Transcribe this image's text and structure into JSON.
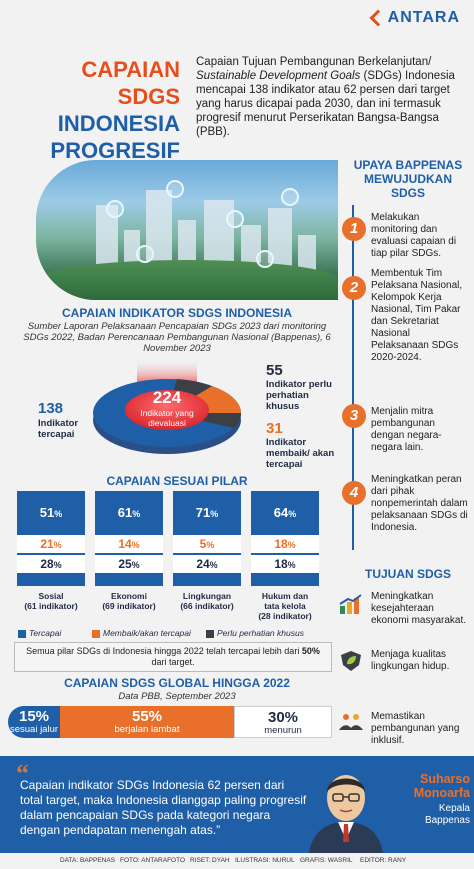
{
  "brand": {
    "logo": "ANTARA"
  },
  "title": {
    "line1": "CAPAIAN SDGS",
    "line2": "INDONESIA",
    "line3": "PROGRESIF"
  },
  "intro": {
    "part1": "Capaian Tujuan Pembangunan Berkelanjutan/ ",
    "part_italic": "Sustainable Development Goals",
    "part2": " (SDGs) Indonesia mencapai 138 indikator atau 62 persen dari target yang harus dicapai pada 2030, dan ini termasuk progresif menurut Perserikatan Bangsa-Bangsa (PBB)."
  },
  "indikator": {
    "heading": "CAPAIAN INDIKATOR SDGS INDONESIA",
    "source": "Sumber Laporan Pelaksanaan Pencapaian SDGs 2023 dari monitoring SDGs 2022, Badan Perencanaan Pembangunan Nasional (Bappenas), 6 November 2023",
    "total_value": "224",
    "total_label": "Indikator yang dievaluasi",
    "tercapai_value": "138",
    "tercapai_label": "Indikator tercapai",
    "perlu_value": "55",
    "perlu_label": "Indikator perlu perhatian khusus",
    "membaik_value": "31",
    "membaik_label": "Indikator membaik/ akan tercapai"
  },
  "pilar": {
    "heading": "CAPAIAN SESUAI PILAR",
    "items": [
      {
        "tercapai": "51",
        "membaik": "21",
        "perlu": "28",
        "name": "Sosial",
        "count": "(61 indikator)"
      },
      {
        "tercapai": "61",
        "membaik": "14",
        "perlu": "25",
        "name": "Ekonomi",
        "count": "(69 indikator)"
      },
      {
        "tercapai": "71",
        "membaik": "5",
        "perlu": "24",
        "name": "Lingkungan",
        "count": "(66 indikator)"
      },
      {
        "tercapai": "64",
        "membaik": "18",
        "perlu": "18",
        "name": "Hukum dan tata kelola",
        "count": "(28 indikator)"
      }
    ],
    "pct": "%",
    "legend": {
      "tercapai": "Tercapai",
      "membaik": "Membaik/akan tercapai",
      "perlu": "Perlu perhatian khusus"
    },
    "note_part1": "Semua pilar SDGs di Indonesia hingga 2022 telah tercapai lebih dari ",
    "note_bold": "50%",
    "note_part2": " dari target."
  },
  "global": {
    "heading": "CAPAIAN SDGS GLOBAL HINGGA 2022",
    "source": "Data PBB, September 2023",
    "segments": [
      {
        "value": "15%",
        "label": "sesuai jalur"
      },
      {
        "value": "55%",
        "label": "berjalan lambat"
      },
      {
        "value": "30%",
        "label": "menurun"
      }
    ]
  },
  "upaya": {
    "heading_line1": "UPAYA BAPPENAS",
    "heading_line2": "MEWUJUDKAN",
    "heading_line3": "SDGS",
    "steps": [
      {
        "n": "1",
        "text": "Melakukan monitoring dan evaluasi capaian di tiap pilar SDGs."
      },
      {
        "n": "2",
        "text": "Membentuk Tim Pelaksana Nasional, Kelompok Kerja Nasional, Tim Pakar dan Sekretariat Nasional Pelaksanaan SDGs 2020-2024."
      },
      {
        "n": "3",
        "text": "Menjalin mitra pembangunan dengan negara-negara lain."
      },
      {
        "n": "4",
        "text": "Meningkatkan peran dari pihak nonpemerintah dalam pelaksanaan SDGs di Indonesia."
      }
    ]
  },
  "tujuan": {
    "heading": "TUJUAN SDGS",
    "items": [
      {
        "icon": "growth-chart-icon",
        "text": "Meningkatkan kesejahteraan ekonomi masyarakat."
      },
      {
        "icon": "leaf-shield-icon",
        "text": "Menjaga kualitas lingkungan hidup."
      },
      {
        "icon": "hands-people-icon",
        "text": "Memastikan pembangunan yang inklusif."
      }
    ]
  },
  "quote": {
    "mark": "“",
    "text": "Capaian indikator SDGs Indonesia 62 persen dari total target, maka Indonesia dianggap paling progresif dalam pencapaian SDGs pada kategori negara dengan pendapatan menengah atas.”",
    "name_line1": "Suharso",
    "name_line2": "Monoarfa",
    "role_line1": "Kepala",
    "role_line2": "Bappenas"
  },
  "credits": {
    "data": "DATA: BAPPENAS",
    "foto": "FOTO: ANTARAFOTO",
    "riset": "RISET: DYAH",
    "ilustrasi": "ILUSTRASI: NURUL",
    "grafis": "GRAFIS: WASRIL",
    "editor": "EDITOR: RANY"
  },
  "colors": {
    "blue": "#1e5fa8",
    "orange": "#e8702a",
    "dark": "#3b3f46",
    "red": "#e84e1b"
  }
}
